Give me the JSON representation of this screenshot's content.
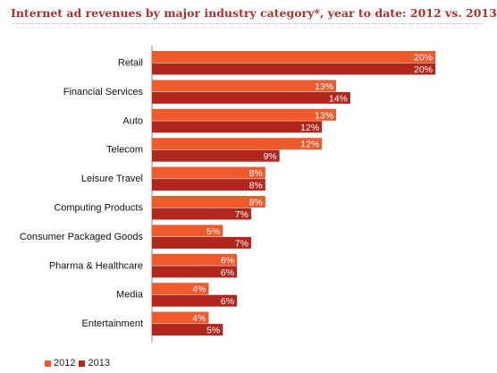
{
  "title": "Internet ad revenues by major industry category*, year to date: 2012 vs. 2013",
  "colors": {
    "2012": "#ef5a2c",
    "2013": "#b1261d",
    "axis": "#888888"
  },
  "chart_data": {
    "type": "bar",
    "orientation": "horizontal",
    "title": "Internet ad revenues by major industry category*, year to date: 2012 vs. 2013",
    "categories": [
      "Retail",
      "Financial Services",
      "Auto",
      "Telecom",
      "Leisure Travel",
      "Computing Products",
      "Consumer Packaged Goods",
      "Pharma & Healthcare",
      "Media",
      "Entertainment"
    ],
    "series": [
      {
        "name": "2012",
        "values": [
          20,
          13,
          13,
          12,
          8,
          8,
          5,
          6,
          4,
          4
        ],
        "labels": [
          "20%",
          "13%",
          "13%",
          "12%",
          "8%",
          "8%",
          "5%",
          "6%",
          "4%",
          "4%"
        ]
      },
      {
        "name": "2013",
        "values": [
          20,
          14,
          12,
          9,
          8,
          7,
          7,
          6,
          6,
          5
        ],
        "labels": [
          "20%",
          "14%",
          "12%",
          "9%",
          "8%",
          "7%",
          "7%",
          "6%",
          "6%",
          "5%"
        ]
      }
    ],
    "legend_position": "bottom-left",
    "grid": false
  }
}
